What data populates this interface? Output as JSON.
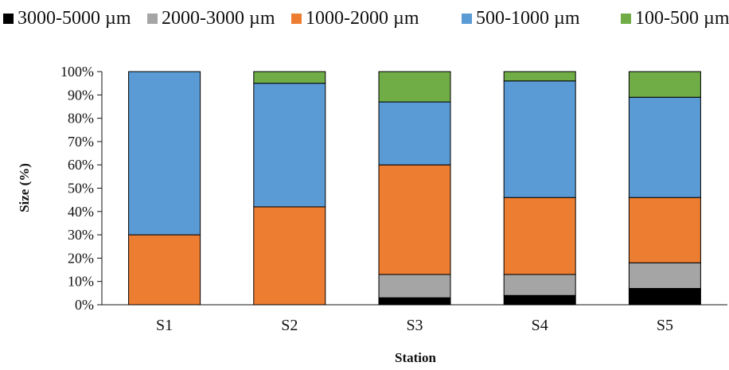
{
  "chart_data": {
    "type": "bar",
    "stacked": true,
    "percent": true,
    "title": "",
    "xlabel": "Station",
    "ylabel": "Size (%)",
    "ylim": [
      0,
      100
    ],
    "yticks": [
      "0%",
      "10%",
      "20%",
      "30%",
      "40%",
      "50%",
      "60%",
      "70%",
      "80%",
      "90%",
      "100%"
    ],
    "categories": [
      "S1",
      "S2",
      "S3",
      "S4",
      "S5"
    ],
    "legend_position": "top",
    "grid": false,
    "series": [
      {
        "name": "3000-5000 µm",
        "color": "#000000",
        "values": [
          0,
          0,
          3,
          4,
          7
        ]
      },
      {
        "name": "2000-3000 µm",
        "color": "#a5a5a5",
        "values": [
          0,
          0,
          10,
          9,
          11
        ]
      },
      {
        "name": "1000-2000 µm",
        "color": "#ed7d31",
        "values": [
          30,
          42,
          47,
          33,
          28
        ]
      },
      {
        "name": "500-1000 µm",
        "color": "#5b9bd5",
        "values": [
          70,
          53,
          27,
          50,
          43
        ]
      },
      {
        "name": "100-500 µm",
        "color": "#70ad47",
        "values": [
          0,
          5,
          13,
          4,
          11
        ]
      }
    ]
  }
}
